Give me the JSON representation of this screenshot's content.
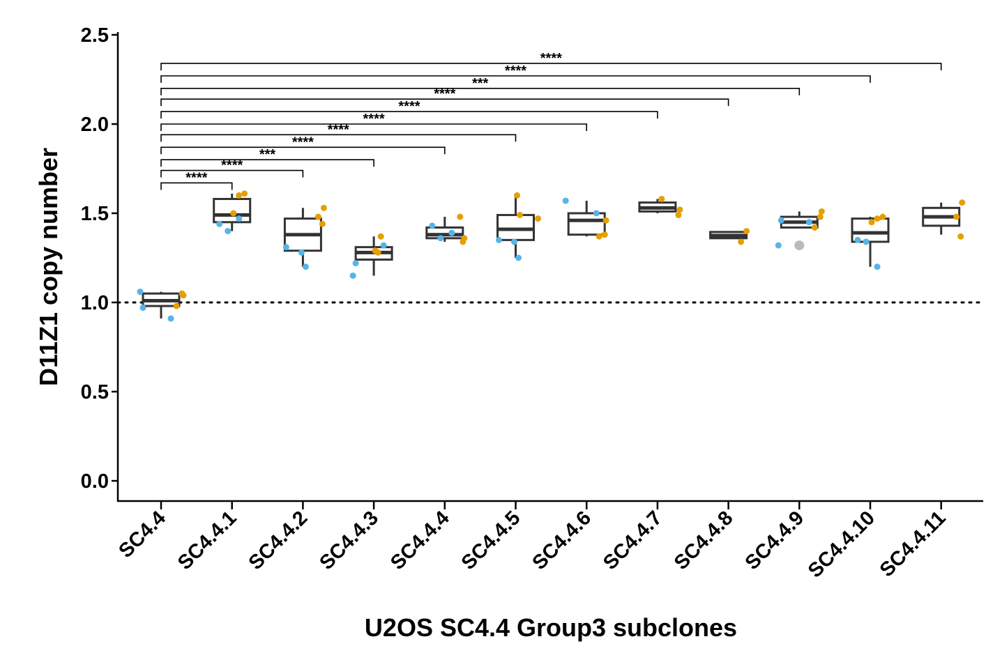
{
  "chart_data": {
    "type": "box",
    "xlabel": "U2OS SC4.4 Group3 subclones",
    "ylabel": "D11Z1 copy number",
    "ylim": [
      0,
      2.5
    ],
    "yticks": [
      0.0,
      0.5,
      1.0,
      1.5,
      2.0,
      2.5
    ],
    "ytick_labels": [
      "0.0",
      "0.5",
      "1.0",
      "1.5",
      "2.0",
      "2.5"
    ],
    "reference_line": 1.0,
    "categories": [
      "SC4.4",
      "SC4.4.1",
      "SC4.4.2",
      "SC4.4.3",
      "SC4.4.4",
      "SC4.4.5",
      "SC4.4.6",
      "SC4.4.7",
      "SC4.4.8",
      "SC4.4.9",
      "SC4.4.10",
      "SC4.4.11"
    ],
    "colors": {
      "series_a": "#56B4E9",
      "series_b": "#E69F00",
      "outlier": "#BBBBBB",
      "box": "#333333"
    },
    "boxes": [
      {
        "category": "SC4.4",
        "min": 0.91,
        "q1": 0.98,
        "median": 1.01,
        "q3": 1.05,
        "max": 1.06
      },
      {
        "category": "SC4.4.1",
        "min": 1.4,
        "q1": 1.45,
        "median": 1.49,
        "q3": 1.58,
        "max": 1.61
      },
      {
        "category": "SC4.4.2",
        "min": 1.2,
        "q1": 1.29,
        "median": 1.38,
        "q3": 1.47,
        "max": 1.53
      },
      {
        "category": "SC4.4.3",
        "min": 1.15,
        "q1": 1.24,
        "median": 1.28,
        "q3": 1.31,
        "max": 1.37
      },
      {
        "category": "SC4.4.4",
        "min": 1.34,
        "q1": 1.36,
        "median": 1.38,
        "q3": 1.42,
        "max": 1.48
      },
      {
        "category": "SC4.4.5",
        "min": 1.25,
        "q1": 1.35,
        "median": 1.41,
        "q3": 1.49,
        "max": 1.59
      },
      {
        "category": "SC4.4.6",
        "min": 1.37,
        "q1": 1.38,
        "median": 1.46,
        "q3": 1.5,
        "max": 1.57
      },
      {
        "category": "SC4.4.7",
        "min": 1.5,
        "q1": 1.51,
        "median": 1.53,
        "q3": 1.56,
        "max": 1.58
      },
      {
        "category": "SC4.4.8",
        "min": 1.36,
        "q1": 1.36,
        "median": 1.375,
        "q3": 1.395,
        "max": 1.4
      },
      {
        "category": "SC4.4.9",
        "min": 1.42,
        "q1": 1.42,
        "median": 1.45,
        "q3": 1.48,
        "max": 1.51
      },
      {
        "category": "SC4.4.10",
        "min": 1.2,
        "q1": 1.34,
        "median": 1.39,
        "q3": 1.47,
        "max": 1.48
      },
      {
        "category": "SC4.4.11",
        "min": 1.38,
        "q1": 1.43,
        "median": 1.48,
        "q3": 1.53,
        "max": 1.56
      }
    ],
    "series": [
      {
        "name": "series_a",
        "points": [
          {
            "x": "SC4.4",
            "y": 0.91
          },
          {
            "x": "SC4.4",
            "y": 0.97
          },
          {
            "x": "SC4.4",
            "y": 1.06
          },
          {
            "x": "SC4.4.1",
            "y": 1.44
          },
          {
            "x": "SC4.4.1",
            "y": 1.47
          },
          {
            "x": "SC4.4.1",
            "y": 1.4
          },
          {
            "x": "SC4.4.2",
            "y": 1.2
          },
          {
            "x": "SC4.4.2",
            "y": 1.28
          },
          {
            "x": "SC4.4.2",
            "y": 1.31
          },
          {
            "x": "SC4.4.3",
            "y": 1.22
          },
          {
            "x": "SC4.4.3",
            "y": 1.15
          },
          {
            "x": "SC4.4.3",
            "y": 1.32
          },
          {
            "x": "SC4.4.4",
            "y": 1.39
          },
          {
            "x": "SC4.4.4",
            "y": 1.36
          },
          {
            "x": "SC4.4.4",
            "y": 1.43
          },
          {
            "x": "SC4.4.5",
            "y": 1.34
          },
          {
            "x": "SC4.4.5",
            "y": 1.35
          },
          {
            "x": "SC4.4.5",
            "y": 1.25
          },
          {
            "x": "SC4.4.6",
            "y": 1.57
          },
          {
            "x": "SC4.4.6",
            "y": 1.5
          },
          {
            "x": "SC4.4.9",
            "y": 1.45
          },
          {
            "x": "SC4.4.9",
            "y": 1.46
          },
          {
            "x": "SC4.4.9",
            "y": 1.32
          },
          {
            "x": "SC4.4.10",
            "y": 1.35
          },
          {
            "x": "SC4.4.10",
            "y": 1.2
          },
          {
            "x": "SC4.4.10",
            "y": 1.34
          }
        ]
      },
      {
        "name": "series_b",
        "points": [
          {
            "x": "SC4.4",
            "y": 1.04
          },
          {
            "x": "SC4.4",
            "y": 1.05
          },
          {
            "x": "SC4.4",
            "y": 0.98
          },
          {
            "x": "SC4.4.1",
            "y": 1.61
          },
          {
            "x": "SC4.4.1",
            "y": 1.6
          },
          {
            "x": "SC4.4.1",
            "y": 1.5
          },
          {
            "x": "SC4.4.2",
            "y": 1.53
          },
          {
            "x": "SC4.4.2",
            "y": 1.48
          },
          {
            "x": "SC4.4.2",
            "y": 1.44
          },
          {
            "x": "SC4.4.3",
            "y": 1.37
          },
          {
            "x": "SC4.4.3",
            "y": 1.29
          },
          {
            "x": "SC4.4.3",
            "y": 1.28
          },
          {
            "x": "SC4.4.4",
            "y": 1.48
          },
          {
            "x": "SC4.4.4",
            "y": 1.36
          },
          {
            "x": "SC4.4.4",
            "y": 1.34
          },
          {
            "x": "SC4.4.5",
            "y": 1.6
          },
          {
            "x": "SC4.4.5",
            "y": 1.49
          },
          {
            "x": "SC4.4.5",
            "y": 1.47
          },
          {
            "x": "SC4.4.6",
            "y": 1.46
          },
          {
            "x": "SC4.4.6",
            "y": 1.38
          },
          {
            "x": "SC4.4.6",
            "y": 1.37
          },
          {
            "x": "SC4.4.7",
            "y": 1.58
          },
          {
            "x": "SC4.4.7",
            "y": 1.52
          },
          {
            "x": "SC4.4.7",
            "y": 1.49
          },
          {
            "x": "SC4.4.8",
            "y": 1.4
          },
          {
            "x": "SC4.4.8",
            "y": 1.34
          },
          {
            "x": "SC4.4.9",
            "y": 1.51
          },
          {
            "x": "SC4.4.9",
            "y": 1.48
          },
          {
            "x": "SC4.4.9",
            "y": 1.42
          },
          {
            "x": "SC4.4.10",
            "y": 1.48
          },
          {
            "x": "SC4.4.10",
            "y": 1.47
          },
          {
            "x": "SC4.4.10",
            "y": 1.45
          },
          {
            "x": "SC4.4.11",
            "y": 1.56
          },
          {
            "x": "SC4.4.11",
            "y": 1.48
          },
          {
            "x": "SC4.4.11",
            "y": 1.37
          }
        ]
      },
      {
        "name": "outlier",
        "points": [
          {
            "x": "SC4.4.9",
            "y": 1.32
          }
        ]
      }
    ],
    "comparisons": [
      {
        "from": "SC4.4",
        "to": "SC4.4.1",
        "label": "****",
        "y": 1.67
      },
      {
        "from": "SC4.4",
        "to": "SC4.4.2",
        "label": "****",
        "y": 1.74
      },
      {
        "from": "SC4.4",
        "to": "SC4.4.3",
        "label": "***",
        "y": 1.8
      },
      {
        "from": "SC4.4",
        "to": "SC4.4.4",
        "label": "****",
        "y": 1.87
      },
      {
        "from": "SC4.4",
        "to": "SC4.4.5",
        "label": "****",
        "y": 1.94
      },
      {
        "from": "SC4.4",
        "to": "SC4.4.6",
        "label": "****",
        "y": 2.0
      },
      {
        "from": "SC4.4",
        "to": "SC4.4.7",
        "label": "****",
        "y": 2.07
      },
      {
        "from": "SC4.4",
        "to": "SC4.4.8",
        "label": "****",
        "y": 2.14
      },
      {
        "from": "SC4.4",
        "to": "SC4.4.9",
        "label": "***",
        "y": 2.2
      },
      {
        "from": "SC4.4",
        "to": "SC4.4.10",
        "label": "****",
        "y": 2.27
      },
      {
        "from": "SC4.4",
        "to": "SC4.4.11",
        "label": "****",
        "y": 2.34
      }
    ]
  }
}
